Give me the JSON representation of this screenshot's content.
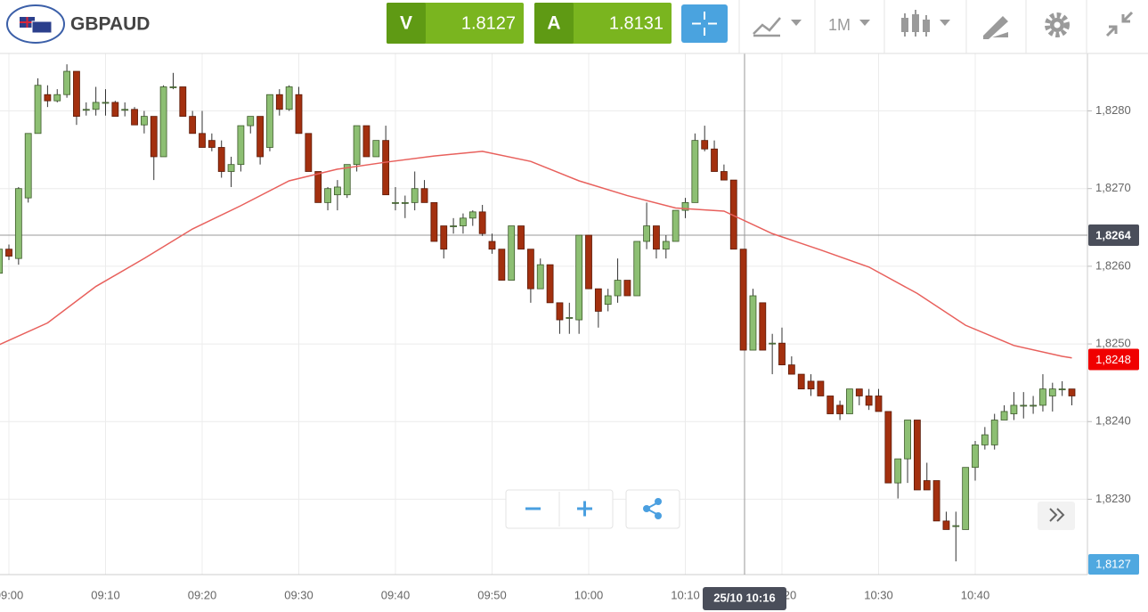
{
  "toolbar": {
    "symbol": "GBPAUD",
    "sell": {
      "label": "V",
      "price": "1.8127"
    },
    "buy": {
      "label": "A",
      "price": "1.8131"
    },
    "timeframe": "1M"
  },
  "chart_data": {
    "type": "candlestick",
    "categories": [
      "08:59",
      "09:00",
      "09:01",
      "09:02",
      "09:03",
      "09:04",
      "09:05",
      "09:06",
      "09:07",
      "09:08",
      "09:09",
      "09:10",
      "09:11",
      "09:12",
      "09:13",
      "09:14",
      "09:15",
      "09:16",
      "09:17",
      "09:18",
      "09:19",
      "09:20",
      "09:21",
      "09:22",
      "09:23",
      "09:24",
      "09:25",
      "09:26",
      "09:27",
      "09:28",
      "09:29",
      "09:30",
      "09:31",
      "09:32",
      "09:33",
      "09:34",
      "09:35",
      "09:36",
      "09:37",
      "09:38",
      "09:39",
      "09:40",
      "09:41",
      "09:42",
      "09:43",
      "09:44",
      "09:45",
      "09:46",
      "09:47",
      "09:48",
      "09:49",
      "09:50",
      "09:51",
      "09:52",
      "09:53",
      "09:54",
      "09:55",
      "09:56",
      "09:57",
      "09:58",
      "09:59",
      "10:00",
      "10:01",
      "10:02",
      "10:03",
      "10:04",
      "10:05",
      "10:06",
      "10:07",
      "10:08",
      "10:09",
      "10:10",
      "10:11",
      "10:12",
      "10:13",
      "10:14",
      "10:15",
      "10:16",
      "10:17",
      "10:18",
      "10:19",
      "10:20",
      "10:21",
      "10:22",
      "10:23",
      "10:24",
      "10:25",
      "10:26",
      "10:27",
      "10:28",
      "10:29",
      "10:30",
      "10:31",
      "10:32",
      "10:33",
      "10:34",
      "10:35",
      "10:36",
      "10:37",
      "10:38",
      "10:39",
      "10:40",
      "10:41",
      "10:42",
      "10:43",
      "10:44",
      "10:45",
      "10:46",
      "10:47",
      "10:48",
      "10:49",
      "10:50"
    ],
    "open": [
      1.82591,
      1.82622,
      1.8261,
      1.82688,
      1.82771,
      1.82821,
      1.82813,
      1.82821,
      1.82851,
      1.82802,
      1.82802,
      1.82811,
      1.82811,
      1.82802,
      1.82802,
      1.82782,
      1.82793,
      1.82741,
      1.82831,
      1.82831,
      1.82793,
      1.82771,
      1.82762,
      1.82753,
      1.82722,
      1.82731,
      1.82781,
      1.82793,
      1.82753,
      1.82821,
      1.82802,
      1.82821,
      1.82771,
      1.82722,
      1.82682,
      1.82692,
      1.82692,
      1.82731,
      1.82781,
      1.82741,
      1.82762,
      1.82682,
      1.82682,
      1.82682,
      1.827,
      1.82682,
      1.82652,
      1.82652,
      1.82652,
      1.82662,
      1.8267,
      1.82632,
      1.82622,
      1.82582,
      1.82652,
      1.82622,
      1.82571,
      1.82602,
      1.82553,
      1.82534,
      1.82531,
      1.8264,
      1.82571,
      1.82551,
      1.82562,
      1.82582,
      1.82562,
      1.82632,
      1.82652,
      1.82622,
      1.82632,
      1.82672,
      1.82682,
      1.82762,
      1.82751,
      1.82722,
      1.82711,
      1.82622,
      1.82492,
      1.82553,
      1.82501,
      1.82501,
      1.82473,
      1.82461,
      1.82452,
      1.82452,
      1.82433,
      1.82421,
      1.8241,
      1.82442,
      1.82433,
      1.82433,
      1.82413,
      1.82321,
      1.82352,
      1.82402,
      1.82324,
      1.82324,
      1.82272,
      1.82266,
      1.82261,
      1.82341,
      1.8237,
      1.8237,
      1.82402,
      1.8241,
      1.82421,
      1.82421,
      1.82421,
      1.82433,
      1.82442,
      1.82442
    ],
    "high": [
      1.82633,
      1.82628,
      1.82702,
      1.82771,
      1.82842,
      1.82833,
      1.82828,
      1.8286,
      1.82851,
      1.82811,
      1.82831,
      1.82828,
      1.82813,
      1.82811,
      1.82805,
      1.828,
      1.82793,
      1.82833,
      1.82849,
      1.82831,
      1.828,
      1.828,
      1.82771,
      1.82762,
      1.82741,
      1.82781,
      1.82793,
      1.82793,
      1.82821,
      1.82828,
      1.82833,
      1.82831,
      1.82771,
      1.82722,
      1.82702,
      1.82711,
      1.82731,
      1.82781,
      1.82781,
      1.82762,
      1.82781,
      1.82702,
      1.82691,
      1.82722,
      1.82711,
      1.82682,
      1.82652,
      1.82662,
      1.82668,
      1.82672,
      1.82679,
      1.82642,
      1.82622,
      1.82652,
      1.82652,
      1.82622,
      1.8261,
      1.82602,
      1.82553,
      1.82553,
      1.8264,
      1.8264,
      1.82571,
      1.82571,
      1.8261,
      1.82582,
      1.82632,
      1.82682,
      1.82652,
      1.8264,
      1.82672,
      1.82688,
      1.82771,
      1.82781,
      1.82762,
      1.82731,
      1.82711,
      1.82622,
      1.82571,
      1.82553,
      1.82513,
      1.82521,
      1.82484,
      1.82461,
      1.82461,
      1.82452,
      1.82433,
      1.82427,
      1.82442,
      1.82442,
      1.82442,
      1.82442,
      1.82413,
      1.82352,
      1.82402,
      1.82402,
      1.82347,
      1.82324,
      1.82284,
      1.82284,
      1.82341,
      1.82375,
      1.82393,
      1.8241,
      1.82421,
      1.82438,
      1.82438,
      1.82433,
      1.82461,
      1.8245,
      1.82452,
      1.82442
    ],
    "low": [
      1.82591,
      1.82608,
      1.82602,
      1.82682,
      1.82771,
      1.82805,
      1.82811,
      1.82817,
      1.82782,
      1.82794,
      1.82794,
      1.82794,
      1.82793,
      1.82793,
      1.82782,
      1.82771,
      1.82711,
      1.82741,
      1.82828,
      1.82793,
      1.82771,
      1.82753,
      1.82748,
      1.82714,
      1.82702,
      1.82722,
      1.82771,
      1.82731,
      1.82748,
      1.82794,
      1.828,
      1.82771,
      1.82722,
      1.82682,
      1.82672,
      1.82672,
      1.82688,
      1.82722,
      1.82741,
      1.82741,
      1.82692,
      1.82672,
      1.82662,
      1.82672,
      1.82682,
      1.82632,
      1.8261,
      1.82642,
      1.82642,
      1.82652,
      1.82639,
      1.82616,
      1.82582,
      1.82582,
      1.82622,
      1.82553,
      1.82571,
      1.82553,
      1.82513,
      1.82513,
      1.82513,
      1.82571,
      1.82521,
      1.82542,
      1.82553,
      1.82562,
      1.82562,
      1.82622,
      1.8261,
      1.8261,
      1.82632,
      1.82662,
      1.82682,
      1.82748,
      1.82722,
      1.82711,
      1.82622,
      1.82492,
      1.82492,
      1.82492,
      1.82461,
      1.82473,
      1.82461,
      1.82442,
      1.82433,
      1.82433,
      1.8241,
      1.82402,
      1.8241,
      1.82421,
      1.82415,
      1.82413,
      1.82321,
      1.82301,
      1.82321,
      1.82312,
      1.82312,
      1.82272,
      1.82261,
      1.8222,
      1.82261,
      1.82324,
      1.82364,
      1.82364,
      1.82402,
      1.82402,
      1.82404,
      1.8241,
      1.82413,
      1.82413,
      1.82433,
      1.82421
    ],
    "close": [
      1.82622,
      1.82613,
      1.827,
      1.82771,
      1.82833,
      1.82813,
      1.82821,
      1.82851,
      1.82793,
      1.82802,
      1.82811,
      1.82811,
      1.82793,
      1.82802,
      1.82782,
      1.82793,
      1.82741,
      1.82831,
      1.82831,
      1.82793,
      1.82771,
      1.82753,
      1.82753,
      1.82722,
      1.82731,
      1.82781,
      1.82793,
      1.82741,
      1.82821,
      1.82802,
      1.82831,
      1.82771,
      1.82722,
      1.82682,
      1.827,
      1.82702,
      1.82731,
      1.82781,
      1.82741,
      1.82762,
      1.82692,
      1.82682,
      1.82682,
      1.827,
      1.82682,
      1.82632,
      1.82622,
      1.82652,
      1.82662,
      1.8267,
      1.82642,
      1.82622,
      1.82582,
      1.82652,
      1.82622,
      1.82571,
      1.82602,
      1.82553,
      1.82531,
      1.82534,
      1.8264,
      1.82571,
      1.82542,
      1.82562,
      1.82582,
      1.82562,
      1.82632,
      1.82652,
      1.82622,
      1.82632,
      1.82672,
      1.82682,
      1.82762,
      1.82751,
      1.82722,
      1.82711,
      1.82622,
      1.82492,
      1.82562,
      1.82492,
      1.82501,
      1.82473,
      1.82461,
      1.82442,
      1.82442,
      1.82433,
      1.8241,
      1.8241,
      1.82442,
      1.82433,
      1.82421,
      1.82413,
      1.82321,
      1.82352,
      1.82402,
      1.82312,
      1.82312,
      1.82272,
      1.82261,
      1.82266,
      1.82341,
      1.8237,
      1.82383,
      1.82402,
      1.82413,
      1.82421,
      1.82421,
      1.82421,
      1.82442,
      1.82442,
      1.82442,
      1.82433
    ],
    "up_color": "#8dbf73",
    "down_color": "#a3300f",
    "moving_average": {
      "color": "#e8605c",
      "x": [
        "08:59",
        "09:04",
        "09:09",
        "09:14",
        "09:19",
        "09:24",
        "09:29",
        "09:34",
        "09:39",
        "09:44",
        "09:49",
        "09:54",
        "09:59",
        "10:04",
        "10:09",
        "10:14",
        "10:19",
        "10:24",
        "10:29",
        "10:34",
        "10:39",
        "10:44",
        "10:49",
        "10:50"
      ],
      "values": [
        1.82499,
        1.82527,
        1.82574,
        1.8261,
        1.82648,
        1.82678,
        1.8271,
        1.82725,
        1.82734,
        1.82742,
        1.82748,
        1.82735,
        1.8271,
        1.82691,
        1.82675,
        1.82671,
        1.82642,
        1.82621,
        1.82599,
        1.82565,
        1.82524,
        1.82498,
        1.82484,
        1.82482
      ]
    },
    "ylim": [
      1.82203,
      1.82874
    ],
    "yticks": [
      {
        "value": 1.823,
        "label": "1,8230"
      },
      {
        "value": 1.824,
        "label": "1,8240"
      },
      {
        "value": 1.825,
        "label": "1,8250"
      },
      {
        "value": 1.826,
        "label": "1,8260"
      },
      {
        "value": 1.827,
        "label": "1,8270"
      },
      {
        "value": 1.828,
        "label": "1,8280"
      }
    ],
    "xticks": [
      "09:00",
      "09:10",
      "09:20",
      "09:30",
      "09:40",
      "09:50",
      "10:00",
      "10:10",
      "10:20",
      "10:30",
      "10:40"
    ],
    "grid": true,
    "crosshair": {
      "value": 1.8264,
      "label": "1,8264",
      "time_label": "25/10 10:16"
    },
    "ma_tag": {
      "value": 1.8248,
      "label": "1,8248"
    },
    "bid_tag": "1,8127"
  }
}
